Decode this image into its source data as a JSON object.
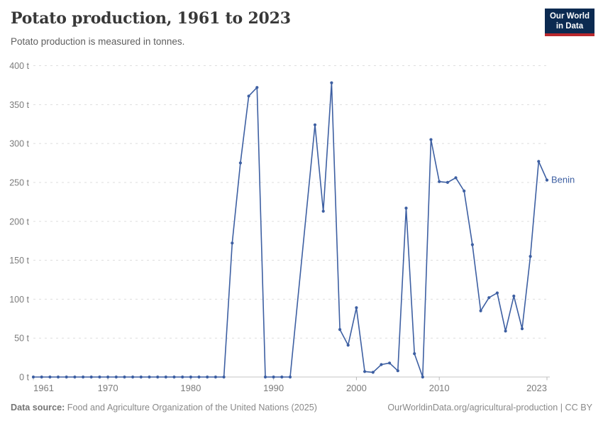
{
  "header": {
    "title": "Potato production, 1961 to 2023",
    "subtitle": "Potato production is measured in tonnes."
  },
  "logo": {
    "line1": "Our World",
    "line2": "in Data",
    "bg_color": "#0b2a51",
    "accent_color": "#b9282d"
  },
  "footer": {
    "source_label": "Data source:",
    "source_text": " Food and Agriculture Organization of the United Nations (2025)",
    "right_text": "OurWorldinData.org/agricultural-production | CC BY"
  },
  "chart_data": {
    "type": "line",
    "title": "Potato production, 1961 to 2023",
    "subtitle": "Potato production is measured in tonnes.",
    "unit": "t",
    "grid": true,
    "legend_position": "end-of-line-label",
    "xlim": [
      1961,
      2023
    ],
    "ylim": [
      0,
      400
    ],
    "y_ticks": [
      {
        "v": 0,
        "label": "0 t"
      },
      {
        "v": 50,
        "label": "50 t"
      },
      {
        "v": 100,
        "label": "100 t"
      },
      {
        "v": 150,
        "label": "150 t"
      },
      {
        "v": 200,
        "label": "200 t"
      },
      {
        "v": 250,
        "label": "250 t"
      },
      {
        "v": 300,
        "label": "300 t"
      },
      {
        "v": 350,
        "label": "350 t"
      },
      {
        "v": 400,
        "label": "400 t"
      }
    ],
    "x_ticks": [
      {
        "v": 1961,
        "label": "1961"
      },
      {
        "v": 1970,
        "label": "1970"
      },
      {
        "v": 1980,
        "label": "1980"
      },
      {
        "v": 1990,
        "label": "1990"
      },
      {
        "v": 2000,
        "label": "2000"
      },
      {
        "v": 2010,
        "label": "2010"
      },
      {
        "v": 2023,
        "label": "2023"
      }
    ],
    "missing_years": [
      1993,
      1994
    ],
    "series": [
      {
        "name": "Benin",
        "color": "#3d5fa2",
        "points": [
          [
            1961,
            0
          ],
          [
            1962,
            0
          ],
          [
            1963,
            0
          ],
          [
            1964,
            0
          ],
          [
            1965,
            0
          ],
          [
            1966,
            0
          ],
          [
            1967,
            0
          ],
          [
            1968,
            0
          ],
          [
            1969,
            0
          ],
          [
            1970,
            0
          ],
          [
            1971,
            0
          ],
          [
            1972,
            0
          ],
          [
            1973,
            0
          ],
          [
            1974,
            0
          ],
          [
            1975,
            0
          ],
          [
            1976,
            0
          ],
          [
            1977,
            0
          ],
          [
            1978,
            0
          ],
          [
            1979,
            0
          ],
          [
            1980,
            0
          ],
          [
            1981,
            0
          ],
          [
            1982,
            0
          ],
          [
            1983,
            0
          ],
          [
            1984,
            0
          ],
          [
            1985,
            172
          ],
          [
            1986,
            275
          ],
          [
            1987,
            361
          ],
          [
            1988,
            372
          ],
          [
            1989,
            0
          ],
          [
            1990,
            0
          ],
          [
            1991,
            0
          ],
          [
            1992,
            0
          ],
          [
            1995,
            324
          ],
          [
            1996,
            213
          ],
          [
            1997,
            378
          ],
          [
            1998,
            61
          ],
          [
            1999,
            41
          ],
          [
            2000,
            89
          ],
          [
            2001,
            7
          ],
          [
            2002,
            6
          ],
          [
            2003,
            16
          ],
          [
            2004,
            18
          ],
          [
            2005,
            8
          ],
          [
            2006,
            217
          ],
          [
            2007,
            30
          ],
          [
            2008,
            0
          ],
          [
            2009,
            305
          ],
          [
            2010,
            251
          ],
          [
            2011,
            250
          ],
          [
            2012,
            256
          ],
          [
            2013,
            239
          ],
          [
            2014,
            170
          ],
          [
            2015,
            85
          ],
          [
            2016,
            102
          ],
          [
            2017,
            108
          ],
          [
            2018,
            59
          ],
          [
            2019,
            104
          ],
          [
            2020,
            62
          ],
          [
            2021,
            155
          ],
          [
            2022,
            277
          ],
          [
            2023,
            253
          ]
        ]
      }
    ]
  }
}
